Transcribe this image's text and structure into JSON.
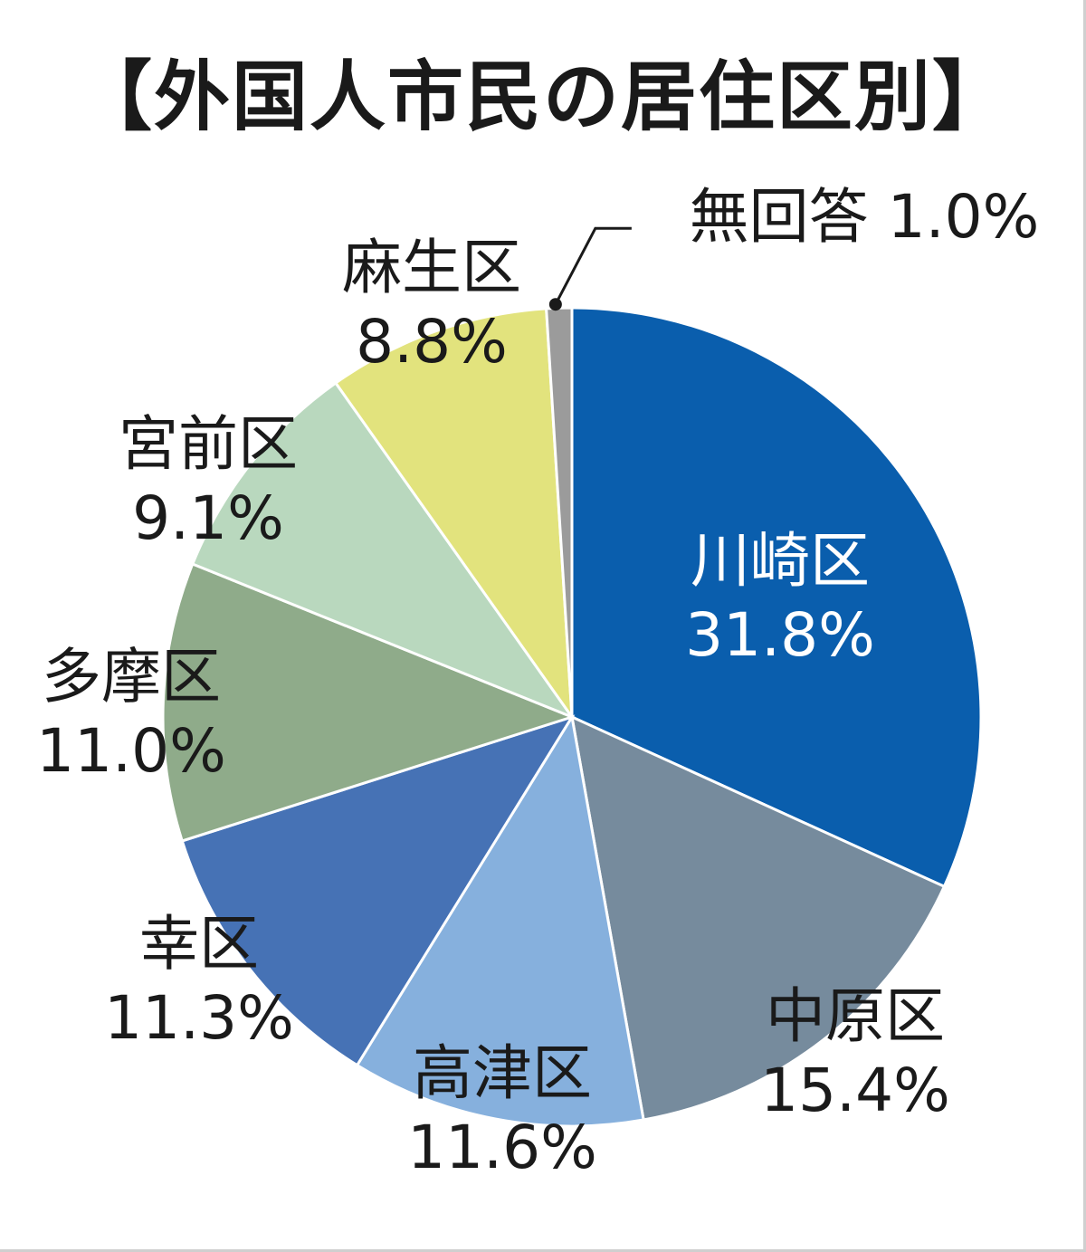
{
  "chart_data": {
    "type": "pie",
    "title": "【外国人市民の居住区別】",
    "colors": {
      "川崎区": "#0a5ead",
      "中原区": "#768b9d",
      "高津区": "#86b0dd",
      "幸区": "#4672b5",
      "多摩区": "#8fab8a",
      "宮前区": "#b9d8be",
      "麻生区": "#e2e37d",
      "無回答": "#9b9b9b"
    },
    "slices": [
      {
        "name": "川崎区",
        "value": 31.8,
        "value_label": "31.8%"
      },
      {
        "name": "中原区",
        "value": 15.4,
        "value_label": "15.4%"
      },
      {
        "name": "高津区",
        "value": 11.6,
        "value_label": "11.6%"
      },
      {
        "name": "幸区",
        "value": 11.3,
        "value_label": "11.3%"
      },
      {
        "name": "多摩区",
        "value": 11.0,
        "value_label": "11.0%"
      },
      {
        "name": "宮前区",
        "value": 9.1,
        "value_label": "9.1%"
      },
      {
        "name": "麻生区",
        "value": 8.8,
        "value_label": "8.8%"
      },
      {
        "name": "無回答",
        "value": 1.0,
        "value_label": "1.0%"
      }
    ],
    "start": "12 o'clock",
    "direction": "clockwise",
    "label_text_colors": {
      "inside_dark_slice": "#ffffff",
      "default": "#1a1a1a"
    }
  }
}
